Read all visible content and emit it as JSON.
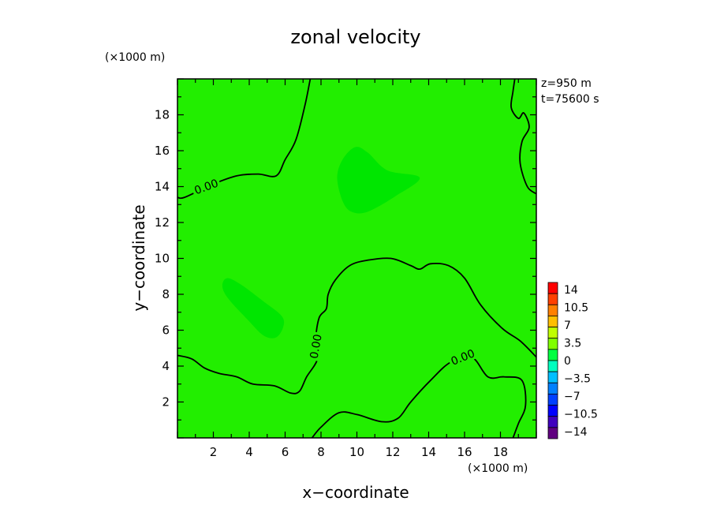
{
  "chart_data": {
    "type": "heatmap",
    "title": "zonal velocity",
    "xlabel": "x−coordinate",
    "ylabel": "y−coordinate",
    "x_unit": "(×1000 m)",
    "y_unit": "(×1000 m)",
    "xlim": [
      0,
      20
    ],
    "ylim": [
      0,
      20
    ],
    "x_ticks": [
      "2",
      "4",
      "6",
      "8",
      "10",
      "12",
      "14",
      "16",
      "18"
    ],
    "y_ticks": [
      "2",
      "4",
      "6",
      "8",
      "10",
      "12",
      "14",
      "16",
      "18"
    ],
    "info": [
      "z=950  m",
      "t=75600  s"
    ],
    "background_level": "0 to 3.5",
    "contour_level": "0.00",
    "contour_labels": [
      "0.00",
      "0.00",
      "0.00"
    ],
    "contours": [
      {
        "points": [
          [
            7.4,
            20
          ],
          [
            7.1,
            18.5
          ],
          [
            6.6,
            16.6
          ],
          [
            6.0,
            15.5
          ],
          [
            5.5,
            14.6
          ],
          [
            4.5,
            14.7
          ],
          [
            3.3,
            14.6
          ],
          [
            1.9,
            14.1
          ],
          [
            0.4,
            13.4
          ],
          [
            0,
            13.4
          ]
        ]
      },
      {
        "points": [
          [
            0,
            4.6
          ],
          [
            0.8,
            4.4
          ],
          [
            1.5,
            3.9
          ],
          [
            2.3,
            3.6
          ],
          [
            3.3,
            3.4
          ],
          [
            4.2,
            3.0
          ],
          [
            5.4,
            2.9
          ],
          [
            6.3,
            2.5
          ],
          [
            6.8,
            2.6
          ],
          [
            7.2,
            3.4
          ],
          [
            7.8,
            4.4
          ],
          [
            7.7,
            5.5
          ],
          [
            7.9,
            6.7
          ],
          [
            8.3,
            7.2
          ],
          [
            8.4,
            8.0
          ],
          [
            8.8,
            8.8
          ],
          [
            9.6,
            9.6
          ],
          [
            10.6,
            9.9
          ],
          [
            11.9,
            10.0
          ],
          [
            13.0,
            9.6
          ],
          [
            13.5,
            9.4
          ],
          [
            14.1,
            9.7
          ],
          [
            15.1,
            9.6
          ],
          [
            16.0,
            8.9
          ],
          [
            16.9,
            7.4
          ],
          [
            18.1,
            6.1
          ],
          [
            19.1,
            5.4
          ],
          [
            20,
            4.5
          ]
        ]
      },
      {
        "points": [
          [
            7.5,
            0
          ],
          [
            8.0,
            0.6
          ],
          [
            9.0,
            1.4
          ],
          [
            10.0,
            1.3
          ],
          [
            11.4,
            0.9
          ],
          [
            12.3,
            1.1
          ],
          [
            13.0,
            2.0
          ],
          [
            14.1,
            3.2
          ],
          [
            15.2,
            4.2
          ],
          [
            16.4,
            4.5
          ],
          [
            17.3,
            3.4
          ],
          [
            18.2,
            3.4
          ],
          [
            19.2,
            3.2
          ],
          [
            19.4,
            1.8
          ],
          [
            19.0,
            0.8
          ],
          [
            18.7,
            0
          ]
        ]
      },
      {
        "points": [
          [
            18.8,
            20
          ],
          [
            18.7,
            19.3
          ],
          [
            18.6,
            18.4
          ],
          [
            19.0,
            17.8
          ],
          [
            19.3,
            18.1
          ],
          [
            19.6,
            17.3
          ],
          [
            19.2,
            16.5
          ],
          [
            19.1,
            15.3
          ],
          [
            19.5,
            14.0
          ],
          [
            20,
            13.6
          ]
        ]
      }
    ],
    "regions": [
      {
        "level": "-3.5 to 0",
        "points": [
          [
            9.2,
            15.5
          ],
          [
            9.9,
            16.2
          ],
          [
            10.6,
            15.9
          ],
          [
            11.7,
            14.9
          ],
          [
            13.5,
            14.5
          ],
          [
            12.2,
            13.5
          ],
          [
            10.6,
            12.6
          ],
          [
            9.7,
            12.6
          ],
          [
            9.2,
            13.2
          ],
          [
            8.9,
            14.5
          ]
        ]
      },
      {
        "level": "-3.5 to 0",
        "points": [
          [
            2.8,
            8.9
          ],
          [
            3.6,
            8.5
          ],
          [
            4.8,
            7.6
          ],
          [
            5.8,
            6.8
          ],
          [
            5.9,
            6.2
          ],
          [
            5.5,
            5.6
          ],
          [
            4.8,
            5.7
          ],
          [
            3.9,
            6.6
          ],
          [
            2.8,
            7.8
          ],
          [
            2.5,
            8.5
          ]
        ]
      }
    ],
    "colorbar": {
      "labels": [
        "14",
        "10.5",
        "7",
        "3.5",
        "0",
        "−3.5",
        "−7",
        "−10.5",
        "−14"
      ],
      "colors": [
        "#ff0000",
        "#ff4000",
        "#ff8000",
        "#ffbf00",
        "#c0ff00",
        "#80ff00",
        "#00ff40",
        "#00ffbf",
        "#00bfff",
        "#0080ff",
        "#0040ff",
        "#0000ff",
        "#4000bf",
        "#600080"
      ]
    },
    "colors": {
      "field": "#22ee00",
      "region": "#00e600",
      "contour": "#000000"
    }
  }
}
